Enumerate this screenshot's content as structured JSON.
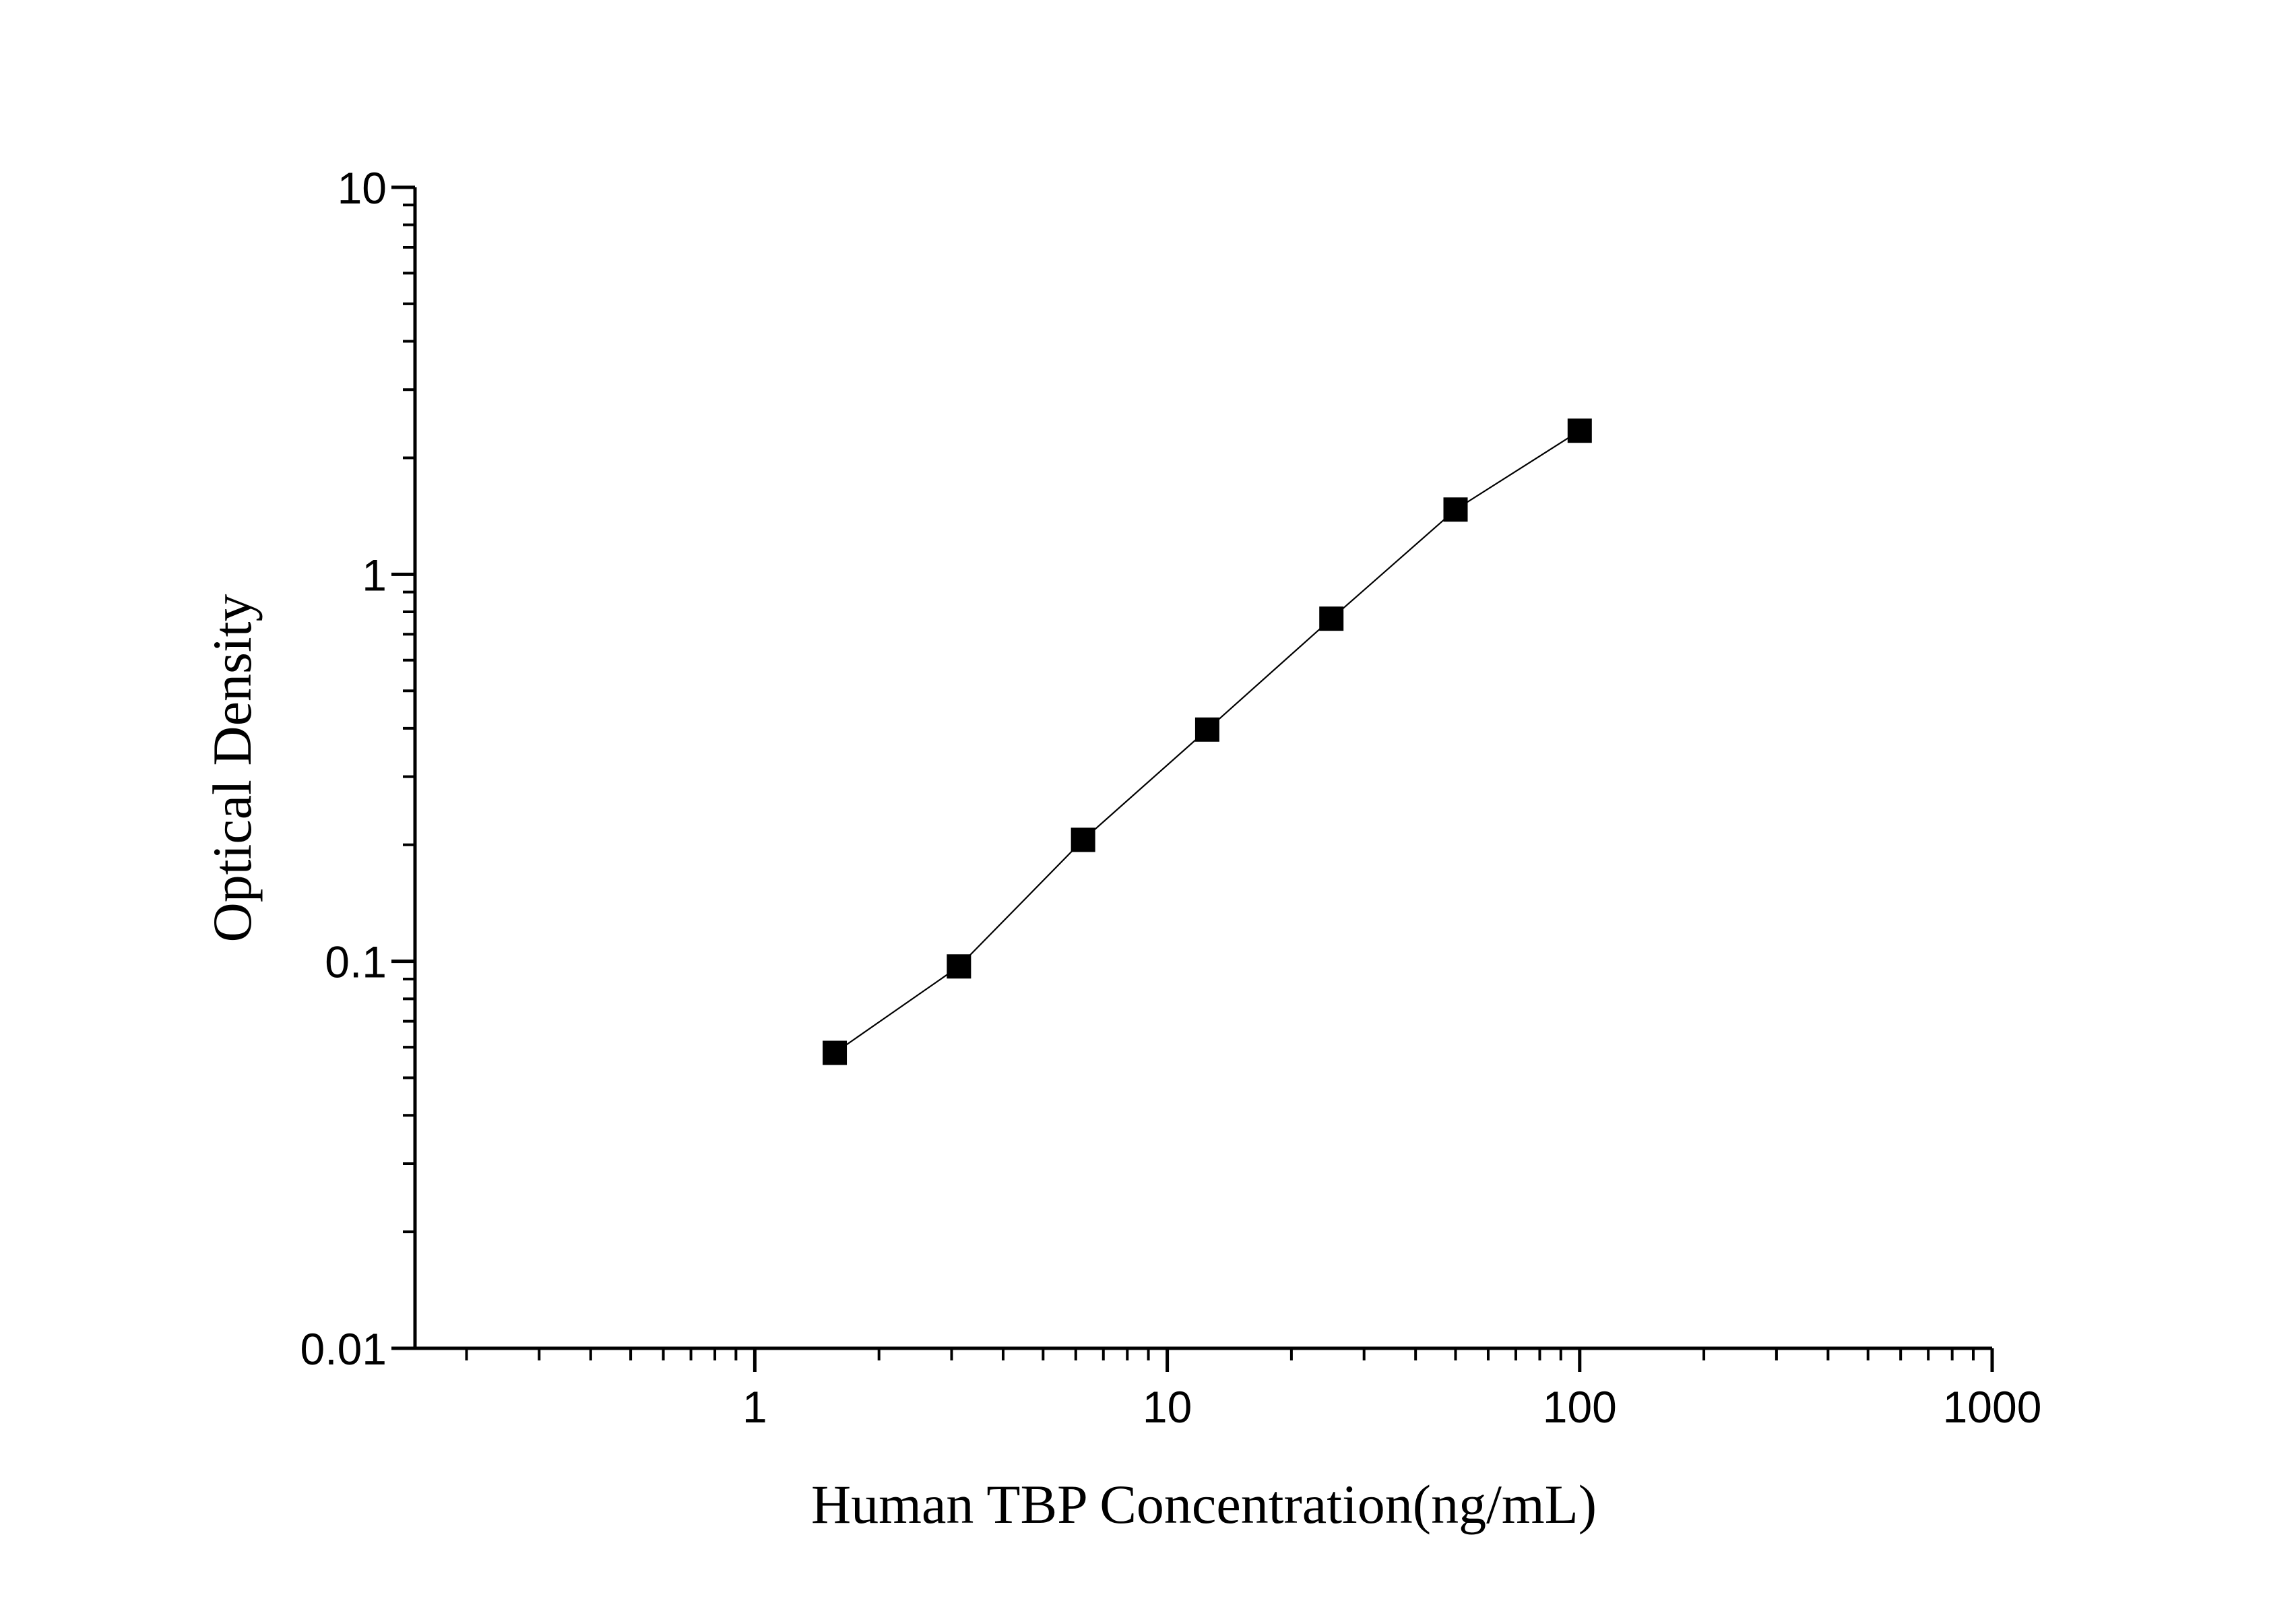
{
  "chart_data": {
    "type": "line",
    "x_label": "Human TBP Concentration(ng/mL)",
    "y_label": "Optical Density",
    "x": [
      1.5625,
      3.125,
      6.25,
      12.5,
      25,
      50,
      100
    ],
    "series": [
      {
        "color": "#000000",
        "values": [
          0.058,
          0.097,
          0.206,
          0.397,
          0.768,
          1.47,
          2.35
        ]
      }
    ],
    "xlim": [
      0.15,
      1000
    ],
    "ylim": [
      0.01,
      10
    ],
    "xticks": [
      1,
      10,
      100,
      1000
    ],
    "yticks": [
      0.01,
      0.1,
      1,
      10
    ],
    "xscale": "log",
    "yscale": "log",
    "marker": "square"
  }
}
